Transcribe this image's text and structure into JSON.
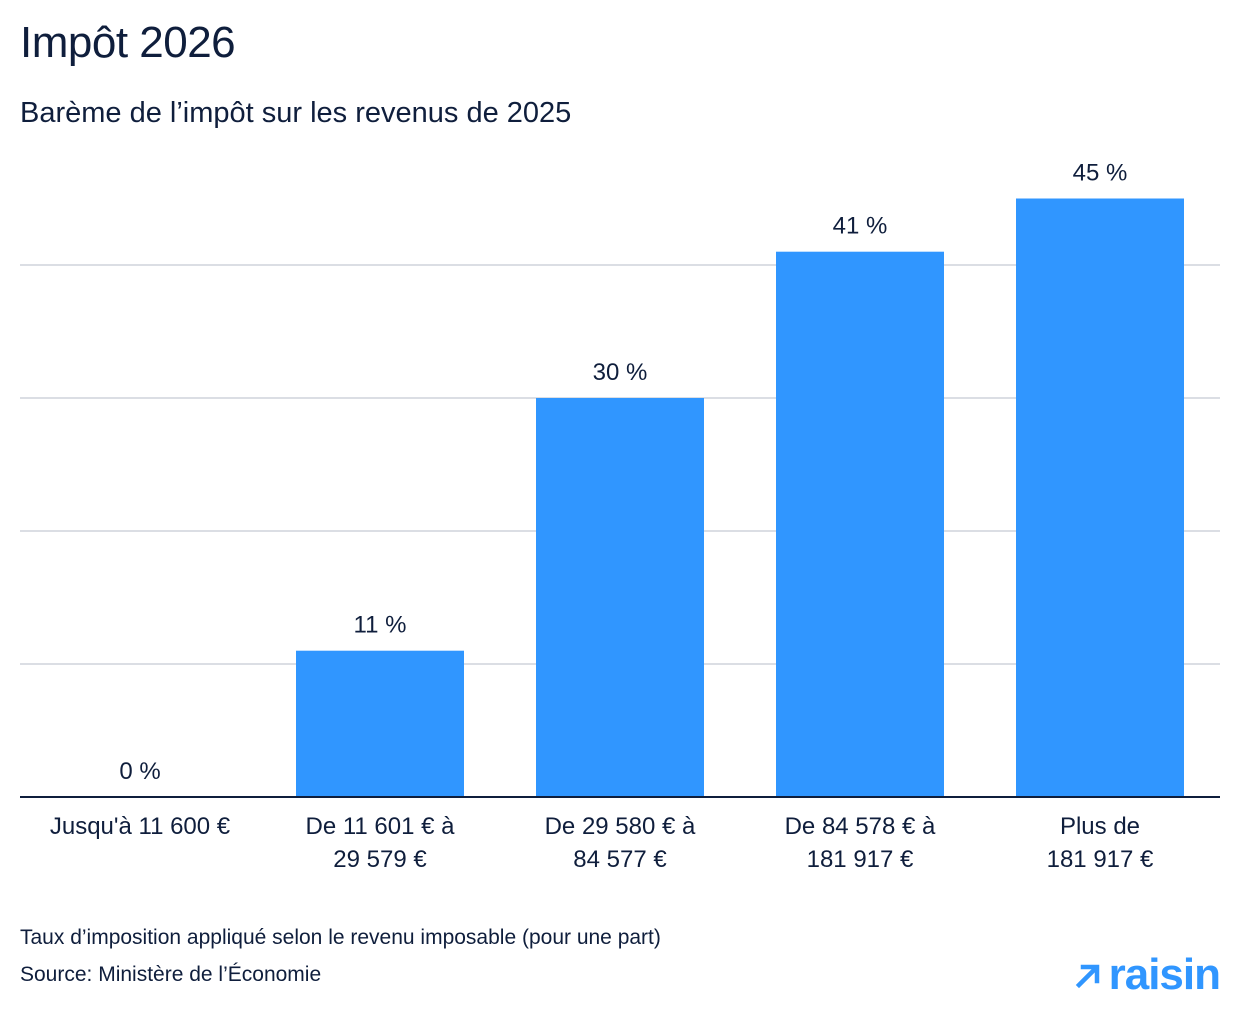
{
  "header": {
    "title": "Impôt 2026",
    "subtitle": "Barème de l’impôt sur les revenus de 2025"
  },
  "footer": {
    "note": "Taux d’imposition appliqué selon le revenu imposable (pour une part)",
    "source": "Source: Ministère de l’Économie",
    "logo_text": "raisin",
    "logo_icon": "arrow-up-right-icon"
  },
  "colors": {
    "bar": "#3096ff",
    "text": "#0f1e3c",
    "grid": "#cfd3dc",
    "axis": "#0f1e3c"
  },
  "chart_data": {
    "type": "bar",
    "title": "Impôt 2026",
    "subtitle": "Barème de l’impôt sur les revenus de 2025",
    "categories": [
      [
        "Jusqu'à 11 600 €"
      ],
      [
        "De 11 601 € à",
        "29 579 €"
      ],
      [
        "De 29 580 € à",
        "84 577 €"
      ],
      [
        "De 84 578 € à",
        "181 917 €"
      ],
      [
        "Plus de",
        "181 917 €"
      ]
    ],
    "values": [
      0,
      11,
      30,
      41,
      45
    ],
    "data_labels": [
      "0 %",
      "11 %",
      "30 %",
      "41 %",
      "45 %"
    ],
    "ylim": [
      0,
      40
    ],
    "grid": true,
    "xlabel": "",
    "ylabel": ""
  }
}
